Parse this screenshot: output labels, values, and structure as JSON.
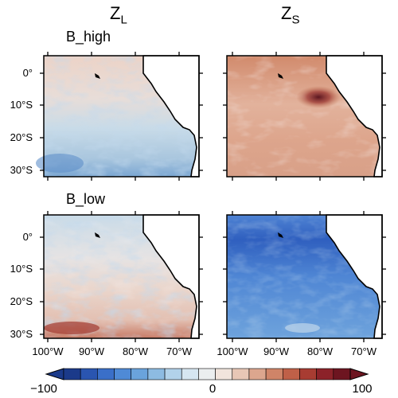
{
  "columns": {
    "left": "Z",
    "left_sub": "L",
    "right": "Z",
    "right_sub": "S"
  },
  "rows": {
    "top": "B_high",
    "bottom": "B_low"
  },
  "lat_ticks": [
    "0°",
    "10°S",
    "20°S",
    "30°S"
  ],
  "lon_ticks": [
    "100°W",
    "90°W",
    "80°W",
    "70°W"
  ],
  "colorbar": {
    "min_label": "−100",
    "mid_label": "0",
    "max_label": "100",
    "colors": [
      "#1b3a8a",
      "#2a55b0",
      "#3a6fc8",
      "#4f8ad6",
      "#6aa3dc",
      "#8dbbe2",
      "#b2d2ea",
      "#d6e6f1",
      "#ebeeef",
      "#f1e4dc",
      "#e8c7b6",
      "#dca68e",
      "#cf8468",
      "#bf6048",
      "#a83c32",
      "#8c2229",
      "#6d1520"
    ]
  },
  "panels": [
    {
      "name": "zl-bhigh",
      "base": "#e9d4ca"
    },
    {
      "name": "zs-bhigh",
      "base": "#d69a7e"
    },
    {
      "name": "zl-blow",
      "base": "#e2e4e8"
    },
    {
      "name": "zs-blow",
      "base": "#3d6fc8"
    }
  ]
}
